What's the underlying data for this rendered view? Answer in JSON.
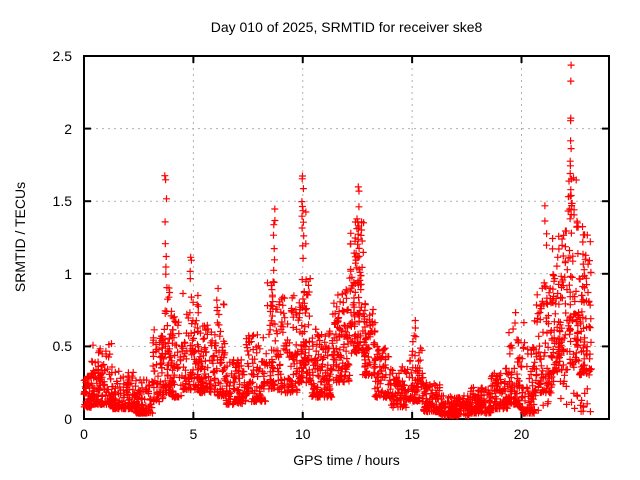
{
  "chart_data": {
    "type": "scatter",
    "title": "Day 010 of 2025, SRMTID for receiver ske8",
    "xlabel": "GPS time / hours",
    "ylabel": "SRMTID / TECUs",
    "xlim": [
      0,
      24
    ],
    "ylim": [
      0,
      2.5
    ],
    "xticks": [
      0,
      5,
      10,
      15,
      20
    ],
    "yticks": [
      0,
      0.5,
      1,
      1.5,
      2,
      2.5
    ],
    "grid": true,
    "legend": null,
    "marker": {
      "shape": "plus",
      "color": "#ff0000",
      "size": 7
    },
    "colors": {
      "grid": "#b0b0b0",
      "border": "#000000",
      "text": "#000000",
      "background": "#ffffff"
    },
    "point_bands": [
      {
        "x0": 0.0,
        "x1": 0.35,
        "n": 55,
        "ymin": 0.08,
        "ymax": 0.3,
        "skew": 2.0
      },
      {
        "x0": 0.35,
        "x1": 1.3,
        "n": 130,
        "ymin": 0.1,
        "ymax": 0.52,
        "skew": 2.1
      },
      {
        "x0": 1.3,
        "x1": 2.35,
        "n": 115,
        "ymin": 0.07,
        "ymax": 0.33,
        "skew": 2.0
      },
      {
        "x0": 2.35,
        "x1": 3.15,
        "n": 85,
        "ymin": 0.04,
        "ymax": 0.28,
        "skew": 2.0
      },
      {
        "x0": 3.15,
        "x1": 3.65,
        "n": 65,
        "ymin": 0.12,
        "ymax": 0.62,
        "skew": 1.9
      },
      {
        "x0": 3.65,
        "x1": 3.95,
        "n": 45,
        "ymin": 0.18,
        "ymax": 0.92,
        "skew": 1.7
      },
      {
        "x0": 3.95,
        "x1": 4.45,
        "n": 60,
        "ymin": 0.15,
        "ymax": 0.75,
        "skew": 1.9
      },
      {
        "x0": 4.45,
        "x1": 5.25,
        "n": 95,
        "ymin": 0.2,
        "ymax": 0.88,
        "skew": 2.0
      },
      {
        "x0": 5.25,
        "x1": 6.05,
        "n": 90,
        "ymin": 0.18,
        "ymax": 0.65,
        "skew": 1.9
      },
      {
        "x0": 6.05,
        "x1": 6.45,
        "n": 45,
        "ymin": 0.15,
        "ymax": 0.8,
        "skew": 2.0
      },
      {
        "x0": 6.45,
        "x1": 7.35,
        "n": 90,
        "ymin": 0.1,
        "ymax": 0.42,
        "skew": 1.8
      },
      {
        "x0": 7.35,
        "x1": 8.35,
        "n": 100,
        "ymin": 0.12,
        "ymax": 0.58,
        "skew": 1.9
      },
      {
        "x0": 8.35,
        "x1": 8.95,
        "n": 70,
        "ymin": 0.2,
        "ymax": 0.95,
        "skew": 1.8
      },
      {
        "x0": 8.95,
        "x1": 9.75,
        "n": 85,
        "ymin": 0.18,
        "ymax": 0.85,
        "skew": 1.7
      },
      {
        "x0": 9.75,
        "x1": 10.35,
        "n": 85,
        "ymin": 0.25,
        "ymax": 1.0,
        "skew": 1.7
      },
      {
        "x0": 10.35,
        "x1": 11.35,
        "n": 125,
        "ymin": 0.15,
        "ymax": 0.62,
        "skew": 1.7
      },
      {
        "x0": 11.35,
        "x1": 12.15,
        "n": 105,
        "ymin": 0.25,
        "ymax": 0.95,
        "skew": 1.6
      },
      {
        "x0": 12.15,
        "x1": 12.7,
        "n": 95,
        "ymin": 0.45,
        "ymax": 1.38,
        "skew": 1.4
      },
      {
        "x0": 12.7,
        "x1": 13.3,
        "n": 80,
        "ymin": 0.3,
        "ymax": 0.8,
        "skew": 1.6
      },
      {
        "x0": 13.3,
        "x1": 14.0,
        "n": 70,
        "ymin": 0.15,
        "ymax": 0.5,
        "skew": 1.7
      },
      {
        "x0": 14.0,
        "x1": 14.85,
        "n": 80,
        "ymin": 0.08,
        "ymax": 0.36,
        "skew": 1.7
      },
      {
        "x0": 14.85,
        "x1": 15.5,
        "n": 70,
        "ymin": 0.12,
        "ymax": 0.58,
        "skew": 2.0
      },
      {
        "x0": 15.5,
        "x1": 16.3,
        "n": 90,
        "ymin": 0.05,
        "ymax": 0.25,
        "skew": 1.8
      },
      {
        "x0": 16.3,
        "x1": 17.6,
        "n": 130,
        "ymin": 0.02,
        "ymax": 0.16,
        "skew": 1.6
      },
      {
        "x0": 17.6,
        "x1": 18.6,
        "n": 110,
        "ymin": 0.04,
        "ymax": 0.22,
        "skew": 1.8
      },
      {
        "x0": 18.6,
        "x1": 19.4,
        "n": 90,
        "ymin": 0.07,
        "ymax": 0.35,
        "skew": 1.8
      },
      {
        "x0": 19.4,
        "x1": 19.95,
        "n": 65,
        "ymin": 0.1,
        "ymax": 0.62,
        "skew": 2.0
      },
      {
        "x0": 19.95,
        "x1": 20.6,
        "n": 85,
        "ymin": 0.04,
        "ymax": 0.55,
        "skew": 2.2
      },
      {
        "x0": 20.6,
        "x1": 21.4,
        "n": 95,
        "ymin": 0.18,
        "ymax": 0.95,
        "skew": 1.8
      },
      {
        "x0": 21.4,
        "x1": 22.1,
        "n": 100,
        "ymin": 0.3,
        "ymax": 1.3,
        "skew": 1.6
      },
      {
        "x0": 22.1,
        "x1": 22.6,
        "n": 75,
        "ymin": 0.35,
        "ymax": 1.7,
        "skew": 1.5
      },
      {
        "x0": 22.6,
        "x1": 23.2,
        "n": 85,
        "ymin": 0.3,
        "ymax": 1.3,
        "skew": 1.5
      },
      {
        "x0": 20.6,
        "x1": 23.2,
        "n": 30,
        "ymin": 0.05,
        "ymax": 0.3,
        "skew": 1.5
      }
    ],
    "spike_columns": [
      {
        "x": 3.73,
        "values": [
          1.68,
          1.64,
          1.51,
          1.36,
          1.21,
          1.12,
          1.05,
          0.99
        ]
      },
      {
        "x": 4.87,
        "values": [
          1.12,
          1.09,
          1.01,
          0.97
        ]
      },
      {
        "x": 6.1,
        "values": [
          0.9,
          0.82,
          0.77
        ]
      },
      {
        "x": 8.68,
        "values": [
          1.44,
          1.37,
          1.34,
          1.26,
          1.18,
          1.1,
          1.02,
          0.95
        ]
      },
      {
        "x": 10.01,
        "values": [
          1.67,
          1.65,
          1.59,
          1.5,
          1.46,
          1.43,
          1.4,
          1.36,
          1.32,
          1.26,
          1.19,
          1.11
        ]
      },
      {
        "x": 10.18,
        "values": [
          1.43,
          1.2,
          0.96
        ]
      },
      {
        "x": 12.55,
        "values": [
          1.6,
          1.57,
          1.46,
          1.36,
          1.31,
          1.24,
          1.18,
          1.12
        ]
      },
      {
        "x": 12.75,
        "values": [
          1.35,
          1.22,
          1.15,
          1.05
        ]
      },
      {
        "x": 15.15,
        "values": [
          0.68,
          0.62,
          0.56
        ]
      },
      {
        "x": 19.7,
        "values": [
          0.73,
          0.66
        ]
      },
      {
        "x": 20.15,
        "values": [
          0.66
        ]
      },
      {
        "x": 21.1,
        "values": [
          1.47,
          1.37,
          1.27,
          1.2
        ]
      },
      {
        "x": 22.25,
        "values": [
          2.44,
          2.33,
          2.07,
          2.05,
          1.92,
          1.86,
          1.78,
          1.74,
          1.65,
          1.58,
          1.53,
          1.49,
          1.44,
          1.38
        ]
      },
      {
        "x": 22.8,
        "values": [
          1.32,
          1.27,
          1.22
        ]
      }
    ]
  }
}
